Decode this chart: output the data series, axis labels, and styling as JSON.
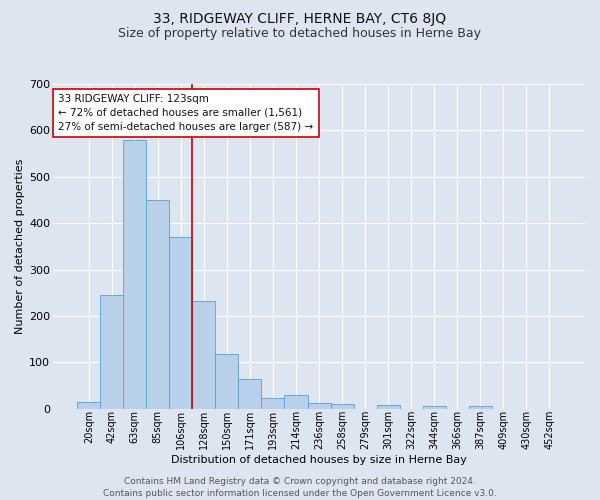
{
  "title": "33, RIDGEWAY CLIFF, HERNE BAY, CT6 8JQ",
  "subtitle": "Size of property relative to detached houses in Herne Bay",
  "xlabel": "Distribution of detached houses by size in Herne Bay",
  "ylabel": "Number of detached properties",
  "categories": [
    "20sqm",
    "42sqm",
    "63sqm",
    "85sqm",
    "106sqm",
    "128sqm",
    "150sqm",
    "171sqm",
    "193sqm",
    "214sqm",
    "236sqm",
    "258sqm",
    "279sqm",
    "301sqm",
    "322sqm",
    "344sqm",
    "366sqm",
    "387sqm",
    "409sqm",
    "430sqm",
    "452sqm"
  ],
  "values": [
    15,
    246,
    580,
    450,
    370,
    233,
    117,
    65,
    22,
    30,
    12,
    10,
    0,
    8,
    0,
    5,
    0,
    6,
    0,
    0,
    0
  ],
  "bar_color": "#b8d0ea",
  "bar_edge_color": "#5a9fd4",
  "bg_color": "#dde6f0",
  "plot_bg_color": "#dde6f0",
  "grid_color": "#ffffff",
  "vline_x_index": 5,
  "vline_color": "#cc0000",
  "annotation_text": "33 RIDGEWAY CLIFF: 123sqm\n← 72% of detached houses are smaller (1,561)\n27% of semi-detached houses are larger (587) →",
  "annotation_box_color": "#ffffff",
  "annotation_box_edge": "#cc0000",
  "ylim": [
    0,
    700
  ],
  "yticks": [
    0,
    100,
    200,
    300,
    400,
    500,
    600,
    700
  ],
  "footer_line1": "Contains HM Land Registry data © Crown copyright and database right 2024.",
  "footer_line2": "Contains public sector information licensed under the Open Government Licence v3.0.",
  "title_fontsize": 10,
  "subtitle_fontsize": 9,
  "annotation_fontsize": 7.5,
  "footer_fontsize": 6.5,
  "ylabel_fontsize": 8,
  "xlabel_fontsize": 8,
  "ytick_fontsize": 8,
  "xtick_fontsize": 7
}
